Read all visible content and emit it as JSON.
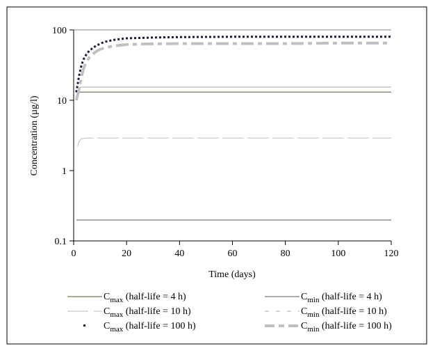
{
  "chart_data": {
    "type": "line",
    "title": "",
    "xlabel": "Time (days)",
    "ylabel": "Concentration (µg/l)",
    "xlim": [
      0,
      120
    ],
    "ylim": [
      0.1,
      100
    ],
    "yscale": "log",
    "grid": false,
    "legend_placement": "bottom",
    "x_ticks": [
      "0",
      "20",
      "40",
      "60",
      "80",
      "100",
      "120"
    ],
    "x_tick_values": [
      0,
      20,
      40,
      60,
      80,
      100,
      120
    ],
    "y_ticks": [
      "100",
      "10",
      "1",
      "0.1"
    ],
    "y_tick_values": [
      100,
      10,
      1,
      0.1
    ],
    "series": [
      {
        "name_main": "C",
        "name_sub": "max",
        "name_rest": " (half-life = 4 h)",
        "color": "#55553a",
        "style": "solid",
        "x": [
          1,
          120
        ],
        "y": [
          13.1,
          13.1
        ]
      },
      {
        "name_main": "C",
        "name_sub": "min",
        "name_rest": " (half-life = 4 h)",
        "color": "#555566",
        "style": "solid",
        "x": [
          1,
          120
        ],
        "y": [
          0.198,
          0.198
        ]
      },
      {
        "name_main": "C",
        "name_sub": "max",
        "name_rest": " (half-life = 10 h)",
        "color": "#bbbbbb",
        "style": "longdash",
        "x": [
          1.5,
          2,
          3,
          5,
          120
        ],
        "y": [
          2.2,
          2.6,
          2.85,
          2.9,
          2.9
        ]
      },
      {
        "name_main": "C",
        "name_sub": "min",
        "name_rest": " (half-life = 10 h)",
        "color": "#aaaaaa",
        "style": "shortdash",
        "x": [
          1.5,
          2,
          3,
          120
        ],
        "y": [
          12,
          15.0,
          15.4,
          15.4
        ]
      },
      {
        "name_main": "C",
        "name_sub": "max",
        "name_rest": " (half-life = 100 h)",
        "color": "#1a1a3a",
        "style": "dots",
        "x": [
          1,
          2,
          3,
          4,
          5,
          6,
          8,
          10,
          12,
          15,
          20,
          25,
          30,
          40,
          60,
          80,
          100,
          120
        ],
        "y": [
          13,
          22,
          32,
          40,
          46,
          51,
          58,
          64,
          68,
          72,
          76,
          77,
          78,
          79,
          80,
          80,
          80,
          80
        ]
      },
      {
        "name_main": "C",
        "name_sub": "min",
        "name_rest": " (half-life = 100 h)",
        "color": "#c0c0c0",
        "style": "thickdash",
        "x": [
          1,
          2,
          3,
          4,
          5,
          6,
          8,
          10,
          12,
          15,
          20,
          25,
          40,
          60,
          80,
          100,
          120
        ],
        "y": [
          10,
          14,
          22,
          30,
          36,
          41,
          48,
          53,
          56,
          59,
          62,
          63,
          64,
          64,
          64,
          65,
          65
        ]
      }
    ]
  }
}
